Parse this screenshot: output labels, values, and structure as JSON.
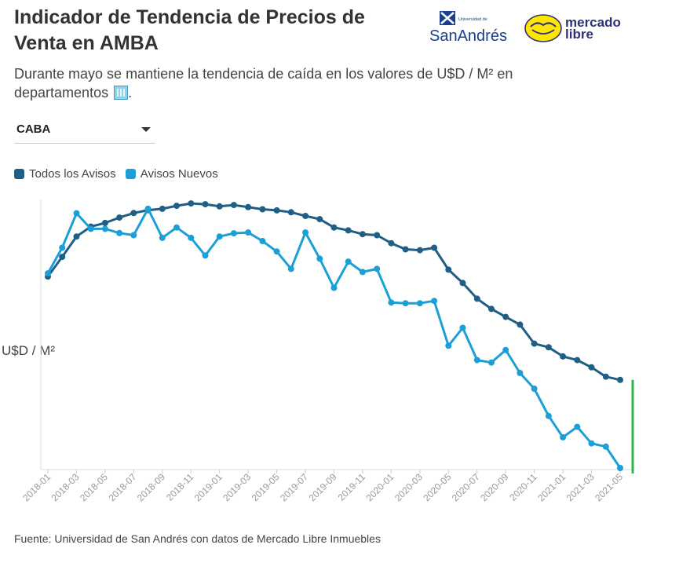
{
  "header": {
    "title": "Indicador de Tendencia de Precios de Venta en AMBA",
    "subtitle": "Durante mayo se mantiene la tendencia de caída en los valores de U$D / M² en departamentos",
    "subtitle_end": "."
  },
  "logos": {
    "usa_small": "Universidad de",
    "usa_big": "SanAndrés",
    "ml_line1": "mercado",
    "ml_line2": "libre"
  },
  "filter": {
    "selected": "CABA"
  },
  "legend": {
    "series1": "Todos los Avisos",
    "series2": "Avisos Nuevos"
  },
  "source": "Fuente: Universidad de San Andrés con datos de Mercado Libre Inmuebles",
  "colors": {
    "series1": "#1f5f84",
    "series2": "#1b9fd6",
    "marker": "#2cb34a",
    "axis": "#dddddd"
  },
  "chart_data": {
    "type": "line",
    "title": "Indicador de Tendencia de Precios de Venta en AMBA",
    "ylabel": "U$D / M²",
    "xlabel": "",
    "ylim": [
      0,
      100
    ],
    "x": [
      "2018-01",
      "2018-02",
      "2018-03",
      "2018-04",
      "2018-05",
      "2018-06",
      "2018-07",
      "2018-08",
      "2018-09",
      "2018-10",
      "2018-11",
      "2018-12",
      "2019-01",
      "2019-02",
      "2019-03",
      "2019-04",
      "2019-05",
      "2019-06",
      "2019-07",
      "2019-08",
      "2019-09",
      "2019-10",
      "2019-11",
      "2019-12",
      "2020-01",
      "2020-02",
      "2020-03",
      "2020-04",
      "2020-05",
      "2020-06",
      "2020-07",
      "2020-08",
      "2020-09",
      "2020-10",
      "2020-11",
      "2020-12",
      "2021-01",
      "2021-02",
      "2021-03",
      "2021-04",
      "2021-05"
    ],
    "x_tick_labels": [
      "2018-01",
      "2018-03",
      "2018-05",
      "2018-07",
      "2018-09",
      "2018-11",
      "2019-01",
      "2019-03",
      "2019-05",
      "2019-07",
      "2019-09",
      "2019-11",
      "2020-01",
      "2020-03",
      "2020-05",
      "2020-07",
      "2020-09",
      "2020-11",
      "2021-01",
      "2021-03",
      "2021-05"
    ],
    "series": [
      {
        "name": "Todos los Avisos",
        "values": [
          71.7,
          79.1,
          86.7,
          90.4,
          91.8,
          93.8,
          95.5,
          96.6,
          97.1,
          98.2,
          99.1,
          98.8,
          98.0,
          98.5,
          97.7,
          96.9,
          96.5,
          95.8,
          94.4,
          93.2,
          90.1,
          89.0,
          87.6,
          87.2,
          84.2,
          81.9,
          81.6,
          82.5,
          74.3,
          69.3,
          63.4,
          59.6,
          56.6,
          53.7,
          46.6,
          45.2,
          41.8,
          40.4,
          37.7,
          34.2,
          33.0
        ]
      },
      {
        "name": "Avisos Nuevos",
        "values": [
          72.9,
          82.5,
          95.4,
          89.6,
          89.6,
          88.0,
          87.2,
          97.1,
          86.2,
          90.1,
          86.2,
          79.6,
          86.7,
          87.9,
          88.2,
          85.0,
          81.1,
          74.6,
          88.2,
          78.4,
          67.5,
          77.3,
          73.4,
          74.6,
          62.0,
          61.7,
          61.7,
          62.6,
          45.8,
          52.5,
          40.4,
          39.5,
          44.2,
          35.6,
          29.7,
          19.5,
          11.5,
          15.4,
          9.2,
          8.0,
          0.0
        ]
      }
    ]
  }
}
